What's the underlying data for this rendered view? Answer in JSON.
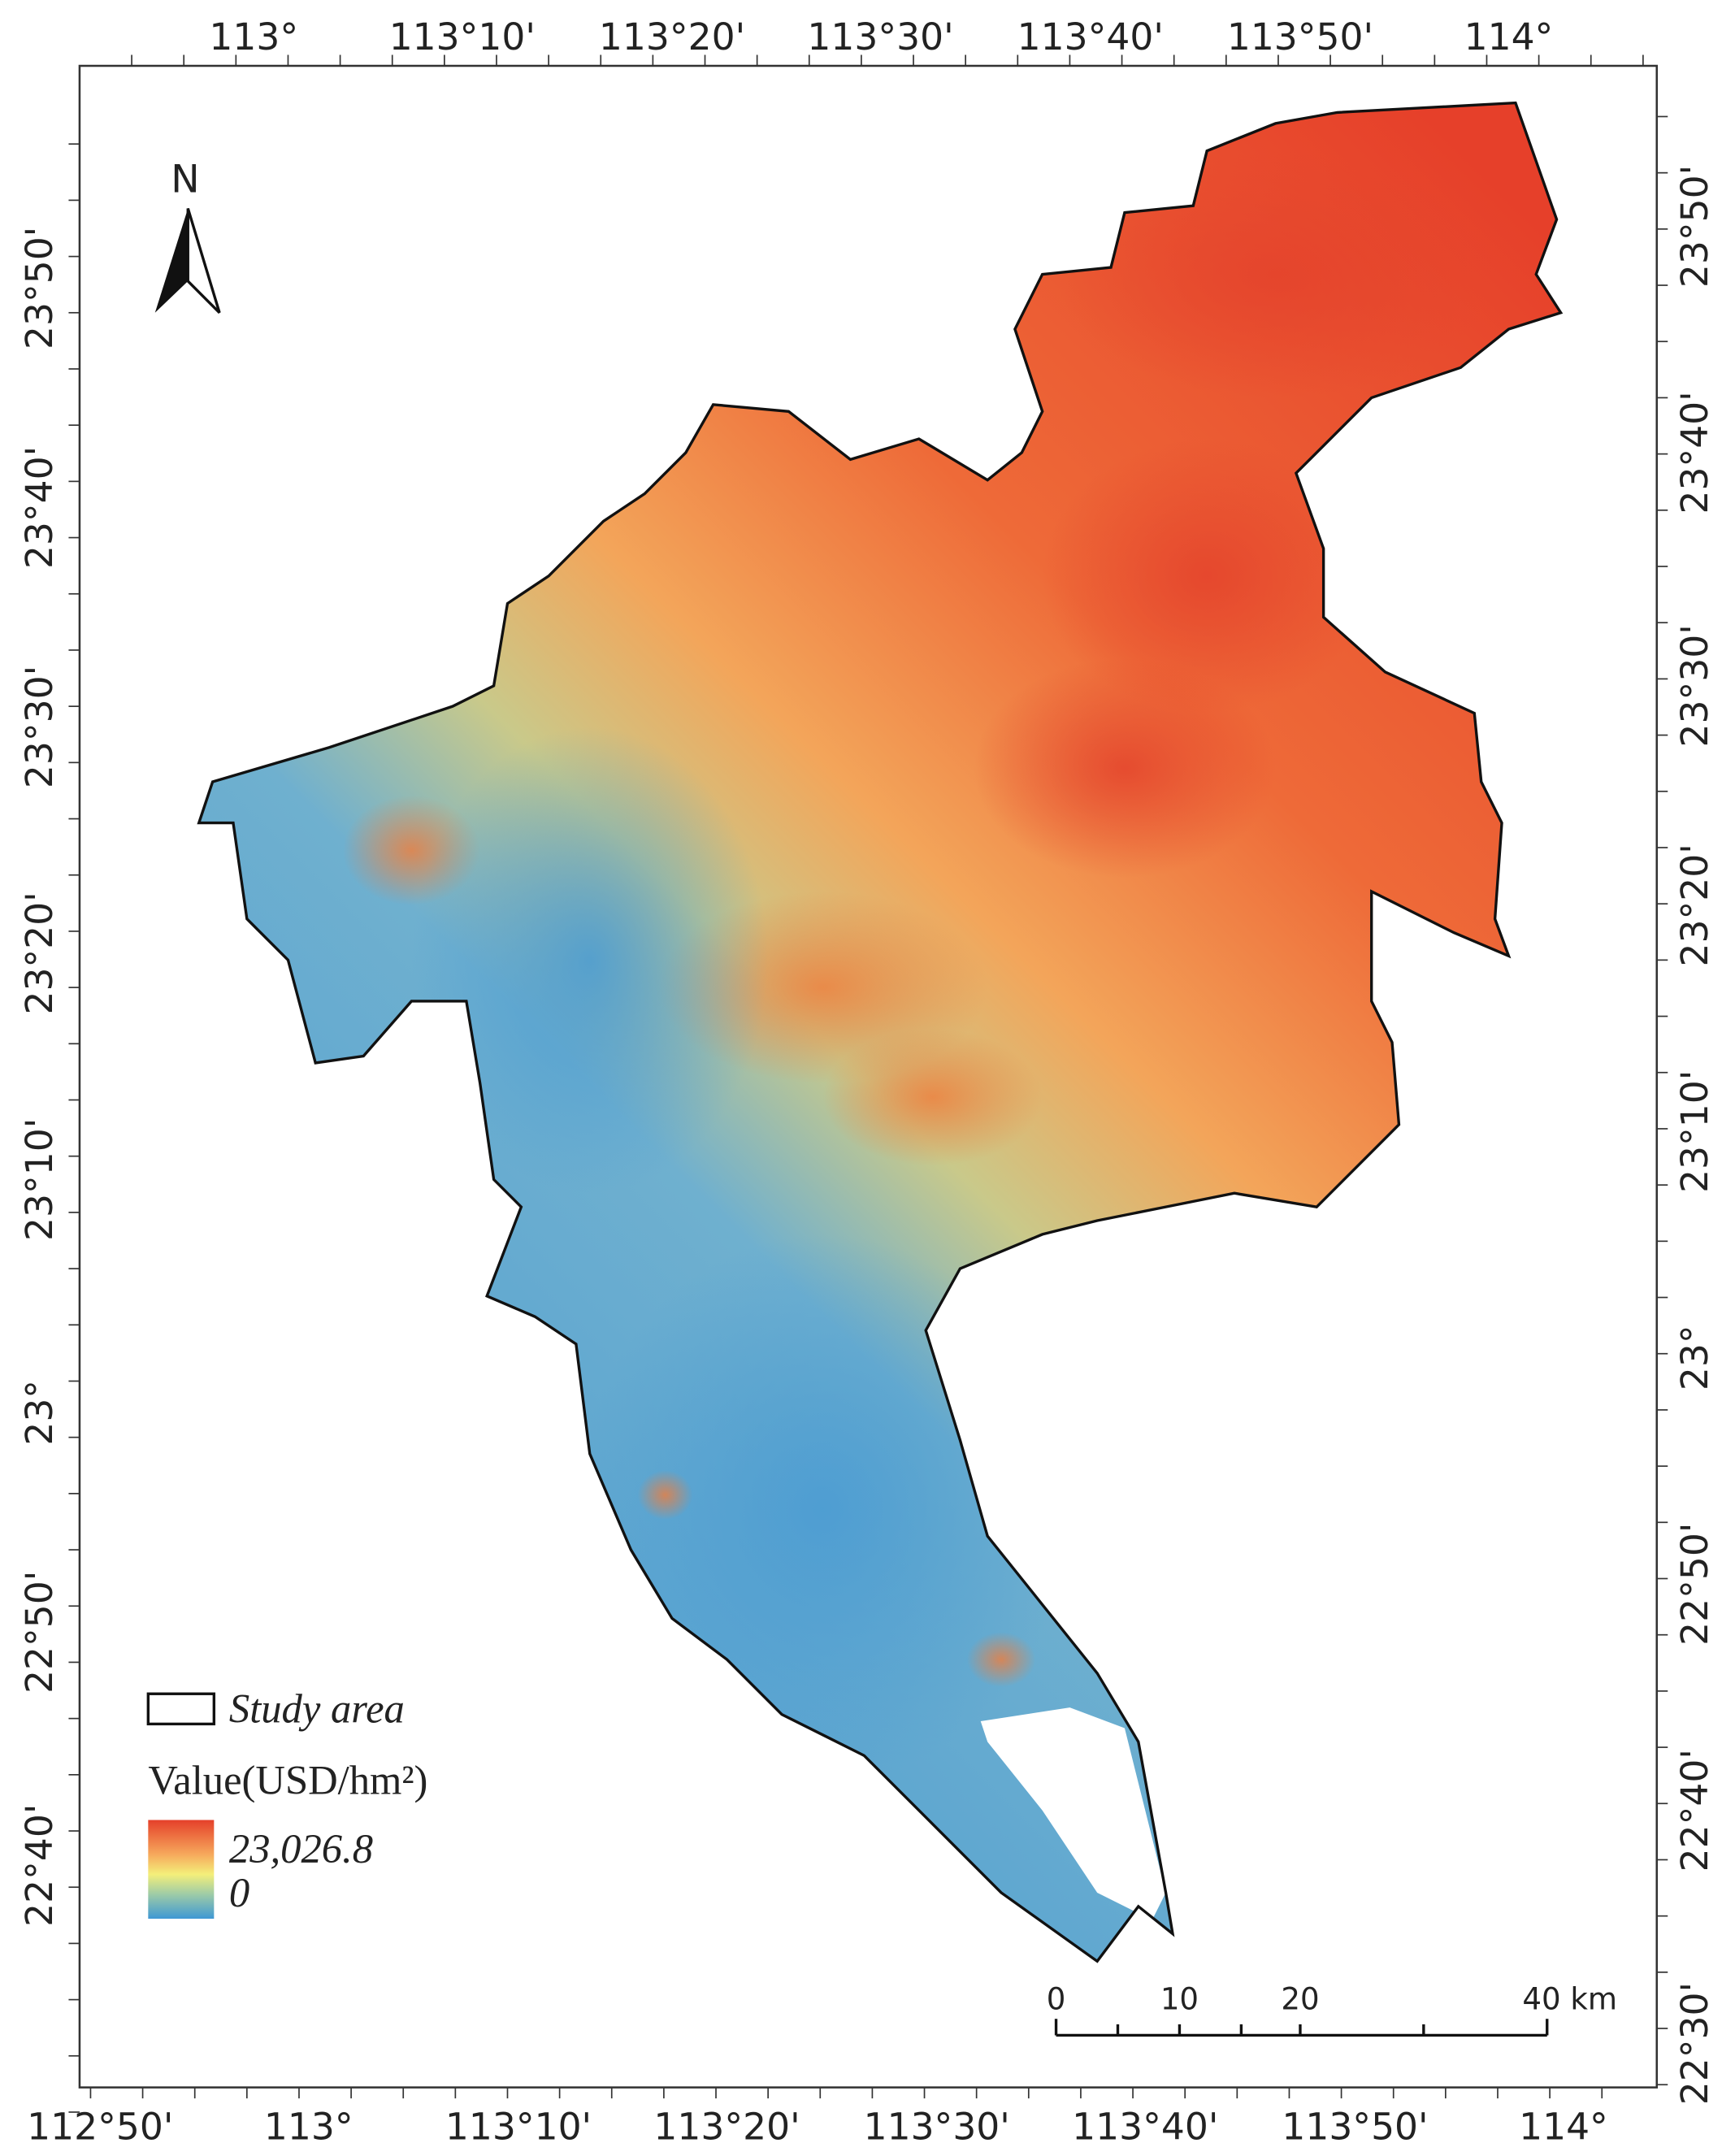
{
  "north_arrow": {
    "label": "N"
  },
  "grid_labels": {
    "top": [
      "113°",
      "113°10'",
      "113°20'",
      "113°30'",
      "113°40'",
      "113°50'",
      "114°"
    ],
    "bottom": [
      "112°50'",
      "113°",
      "113°10'",
      "113°20'",
      "113°30'",
      "113°40'",
      "113°50'",
      "114°"
    ],
    "left": [
      "23°50'",
      "23°40'",
      "23°30'",
      "23°20'",
      "23°10'",
      "23°",
      "22°50'",
      "22°40'"
    ],
    "right": [
      "23°50'",
      "23°40'",
      "23°30'",
      "23°20'",
      "23°10'",
      "23°",
      "22°50'",
      "22°40'",
      "22°30'"
    ]
  },
  "legend": {
    "study_area": "Study area",
    "title": "Value(USD/hm²)",
    "max": "23,026.8",
    "min": "0"
  },
  "scale_bar": {
    "labels": [
      "0",
      "10",
      "20",
      "40 km"
    ]
  }
}
